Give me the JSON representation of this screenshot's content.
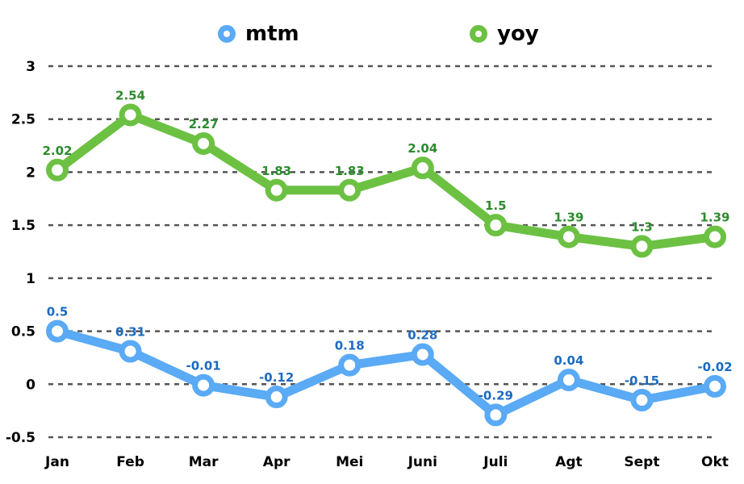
{
  "chart_data": {
    "type": "line",
    "categories": [
      "Jan",
      "Feb",
      "Mar",
      "Apr",
      "Mei",
      "Juni",
      "Juli",
      "Agt",
      "Sept",
      "Okt"
    ],
    "series": [
      {
        "name": "mtm",
        "color": "#5aaaf5",
        "label_color": "#1d6bbf",
        "values": [
          0.5,
          0.31,
          -0.01,
          -0.12,
          0.18,
          0.28,
          -0.29,
          0.04,
          -0.15,
          -0.02
        ]
      },
      {
        "name": "yoy",
        "color": "#6cc143",
        "label_color": "#2e8b2e",
        "values": [
          2.02,
          2.54,
          2.27,
          1.83,
          1.83,
          2.04,
          1.5,
          1.39,
          1.3,
          1.39
        ]
      }
    ],
    "y_ticks": [
      "-0.5",
      "0",
      "0.5",
      "1",
      "1.5",
      "2",
      "2.5",
      "3"
    ],
    "ylim": [
      -0.5,
      3
    ],
    "grid": true,
    "legend_position": "top"
  }
}
